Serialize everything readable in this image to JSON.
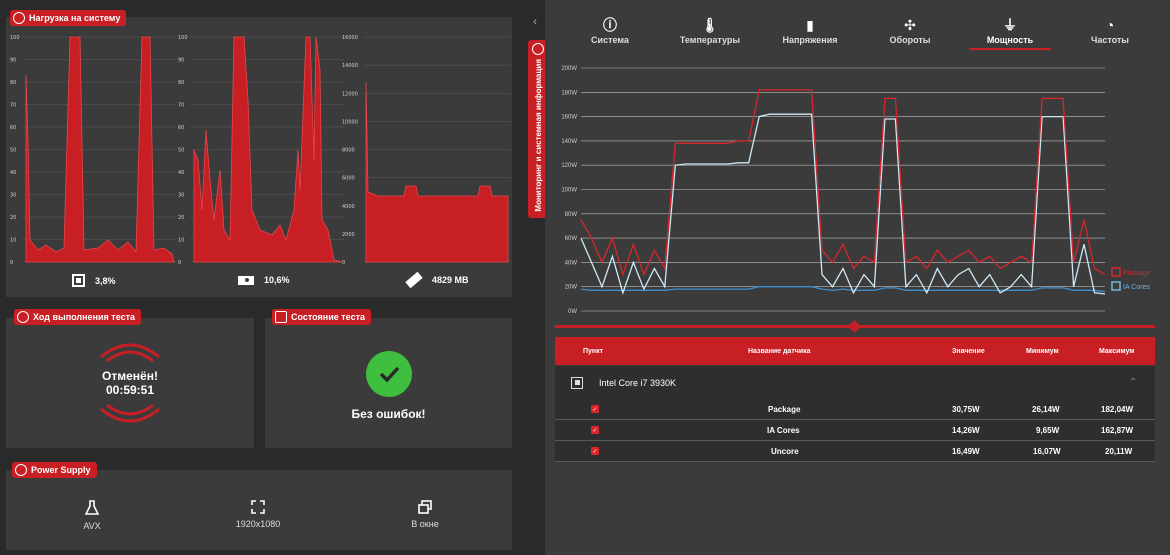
{
  "system_load": {
    "title": "Нагрузка на систему",
    "cpu_axis": [
      "100",
      "90",
      "80",
      "70",
      "60",
      "50",
      "40",
      "30",
      "20",
      "10",
      "0"
    ],
    "gpu_axis": [
      "100",
      "90",
      "80",
      "70",
      "60",
      "50",
      "40",
      "30",
      "20",
      "10",
      "0"
    ],
    "mem_axis": [
      "16000",
      "14000",
      "12000",
      "10000",
      "8000",
      "6000",
      "4000",
      "2000",
      "0"
    ],
    "cpu_value": "3,8%",
    "gpu_value": "10,6%",
    "mem_value": "4829 MB",
    "cpu_icon": "cpu-icon",
    "gpu_icon": "gpu-icon",
    "mem_icon": "memory-icon"
  },
  "progress": {
    "title": "Ход выполнения теста",
    "status": "Отменён!",
    "time": "00:59:51"
  },
  "state": {
    "title": "Состояние теста",
    "message": "Без ошибок!"
  },
  "power_supply": {
    "title": "Power Supply",
    "items": [
      {
        "label": "AVX",
        "icon": "flask-icon"
      },
      {
        "label": "1920x1080",
        "icon": "fullscreen-icon"
      },
      {
        "label": "В окне",
        "icon": "window-icon"
      }
    ]
  },
  "side_tab": {
    "label": "Мониторинг и системная информация"
  },
  "monitor": {
    "tabs": [
      {
        "label": "Система",
        "icon": "info-icon"
      },
      {
        "label": "Температуры",
        "icon": "thermometer-icon"
      },
      {
        "label": "Напряжения",
        "icon": "battery-icon"
      },
      {
        "label": "Обороты",
        "icon": "fan-icon"
      },
      {
        "label": "Мощность",
        "icon": "plug-icon"
      },
      {
        "label": "Частоты",
        "icon": "gauge-icon"
      }
    ],
    "active_tab": "Мощность",
    "legend": [
      {
        "name": "Package",
        "color": "#d8262c"
      },
      {
        "name": "IA Cores",
        "color": "#6fb6e0"
      }
    ],
    "table": {
      "headers": [
        "Пункт",
        "Название датчика",
        "Значение",
        "Минимум",
        "Максимум"
      ],
      "device": "Intel Core i7 3930K",
      "rows": [
        {
          "name": "Package",
          "value": "30,75W",
          "min": "26,14W",
          "max": "182,04W"
        },
        {
          "name": "IA Cores",
          "value": "14,26W",
          "min": "9,65W",
          "max": "162,87W"
        },
        {
          "name": "Uncore",
          "value": "16,49W",
          "min": "16,07W",
          "max": "20,11W"
        }
      ]
    }
  },
  "colors": {
    "accent": "#c81f25",
    "panel": "#3b3b3b",
    "background": "#2a2a2a",
    "ok": "#3fbf3f"
  },
  "chart_data": {
    "type": "line",
    "yticks": [
      "200W",
      "180W",
      "160W",
      "140W",
      "120W",
      "100W",
      "80W",
      "60W",
      "40W",
      "20W",
      "0W"
    ],
    "ylim": [
      0,
      200
    ],
    "x": [
      0,
      2,
      4,
      6,
      8,
      10,
      12,
      14,
      16,
      18,
      20,
      22,
      24,
      26,
      28,
      30,
      32,
      34,
      36,
      38,
      40,
      42,
      44,
      46,
      48,
      50,
      52,
      54,
      56,
      58,
      60,
      62,
      64,
      66,
      68,
      70,
      72,
      74,
      76,
      78,
      80,
      82,
      84,
      86,
      88,
      90,
      92,
      94,
      96,
      98,
      100
    ],
    "series": [
      {
        "name": "Package",
        "values": [
          75,
          60,
          40,
          60,
          30,
          55,
          30,
          50,
          35,
          138,
          138,
          138,
          138,
          138,
          138,
          140,
          140,
          182,
          182,
          182,
          182,
          182,
          182,
          50,
          40,
          55,
          35,
          45,
          40,
          175,
          175,
          40,
          45,
          35,
          50,
          40,
          45,
          50,
          40,
          45,
          35,
          40,
          45,
          40,
          175,
          175,
          175,
          40,
          75,
          35,
          30
        ]
      },
      {
        "name": "IA Cores",
        "values": [
          60,
          40,
          20,
          45,
          15,
          40,
          18,
          35,
          20,
          120,
          121,
          121,
          121,
          121,
          121,
          122,
          122,
          160,
          162,
          162,
          162,
          162,
          162,
          30,
          20,
          35,
          15,
          30,
          20,
          158,
          158,
          20,
          30,
          15,
          35,
          20,
          30,
          35,
          20,
          30,
          15,
          20,
          30,
          20,
          160,
          160,
          160,
          20,
          55,
          15,
          14
        ]
      },
      {
        "name": "Uncore",
        "values": [
          18,
          17,
          17,
          17,
          17,
          17,
          17,
          17,
          17,
          18,
          18,
          18,
          18,
          18,
          18,
          18,
          18,
          20,
          20,
          20,
          20,
          20,
          20,
          18,
          17,
          18,
          17,
          17,
          17,
          19,
          19,
          17,
          17,
          17,
          17,
          17,
          17,
          17,
          17,
          17,
          17,
          17,
          17,
          17,
          19,
          19,
          19,
          17,
          17,
          17,
          16
        ]
      }
    ]
  }
}
